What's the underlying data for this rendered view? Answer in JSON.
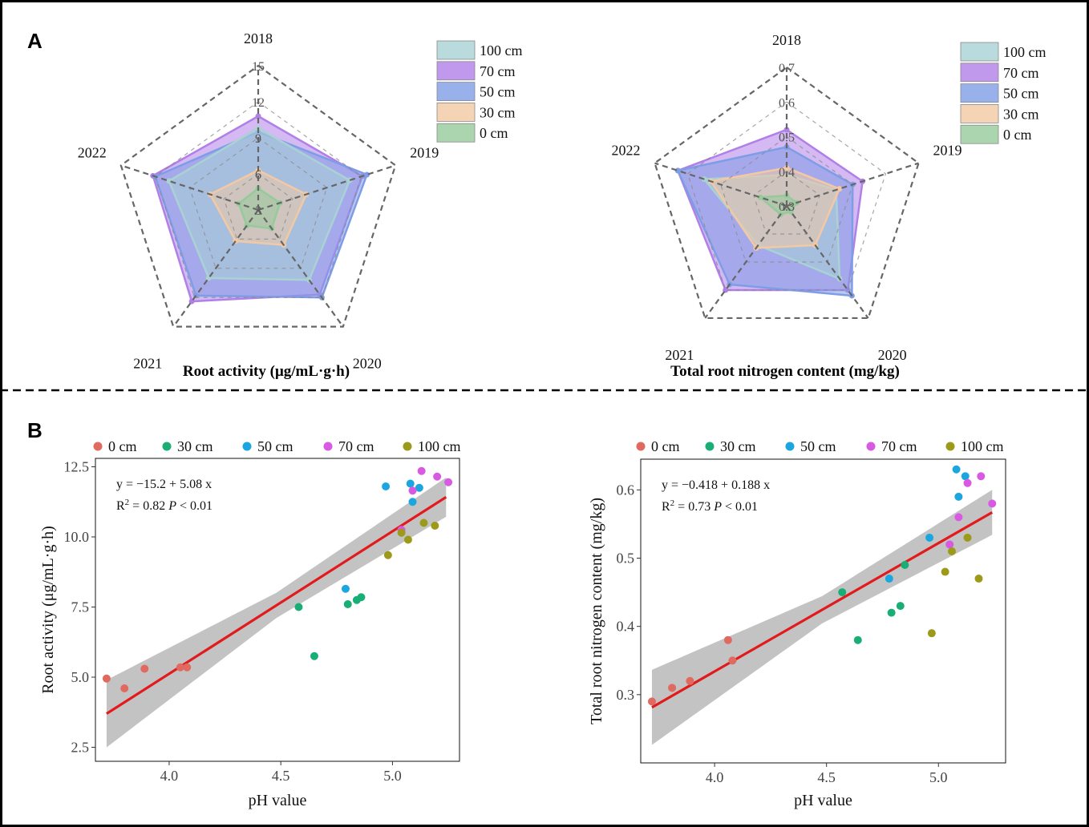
{
  "panels": {
    "a": "A",
    "b": "B"
  },
  "chart_data": [
    {
      "type": "radar",
      "title": "Root activity (μg/mL·g·h)",
      "axes": [
        "2018",
        "2019",
        "2020",
        "2021",
        "2022"
      ],
      "rlim": [
        3,
        15
      ],
      "rticks": [
        "3",
        "6",
        "9",
        "12",
        "15"
      ],
      "legend": [
        "100 cm",
        "70 cm",
        "50 cm",
        "30 cm",
        "0 cm"
      ],
      "series": [
        {
          "name": "70 cm",
          "color": "#b07fe8",
          "values": [
            10.8,
            12.1,
            11.7,
            12.4,
            12.2
          ]
        },
        {
          "name": "50 cm",
          "color": "#7e9de6",
          "values": [
            9.5,
            12.5,
            12.0,
            11.8,
            12.0
          ]
        },
        {
          "name": "100 cm",
          "color": "#a9d2d4",
          "values": [
            9.8,
            11.0,
            10.2,
            10.0,
            10.8
          ]
        },
        {
          "name": "30 cm",
          "color": "#f2c9a4",
          "values": [
            6.3,
            7.2,
            6.6,
            6.2,
            7.2
          ]
        },
        {
          "name": "0 cm",
          "color": "#95ca9b",
          "values": [
            4.8,
            4.9,
            4.9,
            4.6,
            4.7
          ]
        }
      ]
    },
    {
      "type": "radar",
      "title": "Total root nitrogen content (mg/kg)",
      "axes": [
        "2018",
        "2019",
        "2020",
        "2021",
        "2022"
      ],
      "rlim": [
        0.3,
        0.7
      ],
      "rticks": [
        "0.3",
        "0.4",
        "0.5",
        "0.6",
        "0.7"
      ],
      "legend": [
        "100 cm",
        "70 cm",
        "50 cm",
        "30 cm",
        "0 cm"
      ],
      "series": [
        {
          "name": "70 cm",
          "color": "#b07fe8",
          "values": [
            0.52,
            0.53,
            0.6,
            0.6,
            0.63
          ]
        },
        {
          "name": "50 cm",
          "color": "#7e9de6",
          "values": [
            0.47,
            0.5,
            0.62,
            0.58,
            0.63
          ]
        },
        {
          "name": "100 cm",
          "color": "#a9d2d4",
          "values": [
            0.39,
            0.45,
            0.56,
            0.44,
            0.55
          ]
        },
        {
          "name": "30 cm",
          "color": "#f2c9a4",
          "values": [
            0.41,
            0.46,
            0.44,
            0.45,
            0.53
          ]
        },
        {
          "name": "0 cm",
          "color": "#95ca9b",
          "values": [
            0.33,
            0.33,
            0.32,
            0.33,
            0.38
          ]
        }
      ]
    },
    {
      "type": "scatter",
      "xlabel": "pH value",
      "ylabel": "Root activity (μg/mL·g·h)",
      "xlim": [
        3.67,
        5.3
      ],
      "ylim": [
        2.0,
        12.8
      ],
      "xticks": [
        4.0,
        4.5,
        5.0
      ],
      "yticks": [
        2.5,
        5.0,
        7.5,
        10.0,
        12.5
      ],
      "xtick_labels": [
        "4.0",
        "4.5",
        "5.0"
      ],
      "ytick_labels": [
        "2.5",
        "5.0",
        "7.5",
        "10.0",
        "12.5"
      ],
      "fit": {
        "intercept": -15.2,
        "slope": 5.08,
        "x_range": [
          3.72,
          5.24
        ],
        "band_half_width": [
          1.2,
          0.45,
          0.7
        ]
      },
      "equation": "y = −15.2 + 5.08 x",
      "r2_label": "R",
      "r2_sup": "2",
      "r2_value": "= 0.82",
      "p_label": "P",
      "p_value": "< 0.01",
      "legend": [
        "0 cm",
        "30 cm",
        "50 cm",
        "70 cm",
        "100 cm"
      ],
      "series": [
        {
          "name": "0 cm",
          "color": "#e06a5f",
          "points": [
            [
              3.72,
              4.95
            ],
            [
              3.8,
              4.6
            ],
            [
              3.89,
              5.3
            ],
            [
              4.05,
              5.35
            ],
            [
              4.08,
              5.35
            ]
          ]
        },
        {
          "name": "30 cm",
          "color": "#1aae77",
          "points": [
            [
              4.58,
              7.5
            ],
            [
              4.65,
              5.75
            ],
            [
              4.8,
              7.6
            ],
            [
              4.84,
              7.75
            ],
            [
              4.86,
              7.85
            ]
          ]
        },
        {
          "name": "50 cm",
          "color": "#1ba6e0",
          "points": [
            [
              4.79,
              8.15
            ],
            [
              4.97,
              11.8
            ],
            [
              5.08,
              11.9
            ],
            [
              5.09,
              11.25
            ],
            [
              5.12,
              11.75
            ]
          ]
        },
        {
          "name": "70 cm",
          "color": "#d85ae3",
          "points": [
            [
              5.04,
              10.25
            ],
            [
              5.09,
              11.65
            ],
            [
              5.13,
              12.35
            ],
            [
              5.2,
              12.15
            ],
            [
              5.25,
              11.95
            ]
          ]
        },
        {
          "name": "100 cm",
          "color": "#9c9a18",
          "points": [
            [
              4.98,
              9.35
            ],
            [
              5.04,
              10.15
            ],
            [
              5.07,
              9.9
            ],
            [
              5.14,
              10.5
            ],
            [
              5.19,
              10.4
            ]
          ]
        }
      ]
    },
    {
      "type": "scatter",
      "xlabel": "pH value",
      "ylabel": "Total root nitrogen content (mg/kg)",
      "xlim": [
        3.67,
        5.3
      ],
      "ylim": [
        0.2,
        0.645
      ],
      "xticks": [
        4.0,
        4.5,
        5.0
      ],
      "yticks": [
        0.3,
        0.4,
        0.5,
        0.6
      ],
      "xtick_labels": [
        "4.0",
        "4.5",
        "5.0"
      ],
      "ytick_labels": [
        "0.3",
        "0.4",
        "0.5",
        "0.6"
      ],
      "fit": {
        "intercept": -0.418,
        "slope": 0.188,
        "x_range": [
          3.72,
          5.24
        ],
        "band_half_width": [
          0.055,
          0.02,
          0.033
        ]
      },
      "equation": "y = −0.418 + 0.188 x",
      "r2_label": "R",
      "r2_sup": "2",
      "r2_value": "= 0.73",
      "p_label": "P",
      "p_value": "< 0.01",
      "legend": [
        "0 cm",
        "30 cm",
        "50 cm",
        "70 cm",
        "100 cm"
      ],
      "series": [
        {
          "name": "0 cm",
          "color": "#e06a5f",
          "points": [
            [
              3.72,
              0.29
            ],
            [
              3.81,
              0.31
            ],
            [
              3.89,
              0.32
            ],
            [
              4.06,
              0.38
            ],
            [
              4.08,
              0.35
            ]
          ]
        },
        {
          "name": "30 cm",
          "color": "#1aae77",
          "points": [
            [
              4.57,
              0.45
            ],
            [
              4.64,
              0.38
            ],
            [
              4.79,
              0.42
            ],
            [
              4.83,
              0.43
            ],
            [
              4.85,
              0.49
            ]
          ]
        },
        {
          "name": "50 cm",
          "color": "#1ba6e0",
          "points": [
            [
              4.78,
              0.47
            ],
            [
              4.96,
              0.53
            ],
            [
              5.08,
              0.63
            ],
            [
              5.09,
              0.59
            ],
            [
              5.12,
              0.62
            ]
          ]
        },
        {
          "name": "70 cm",
          "color": "#d85ae3",
          "points": [
            [
              5.05,
              0.52
            ],
            [
              5.09,
              0.56
            ],
            [
              5.13,
              0.61
            ],
            [
              5.19,
              0.62
            ],
            [
              5.24,
              0.58
            ]
          ]
        },
        {
          "name": "100 cm",
          "color": "#9c9a18",
          "points": [
            [
              4.97,
              0.39
            ],
            [
              5.03,
              0.48
            ],
            [
              5.06,
              0.51
            ],
            [
              5.13,
              0.53
            ],
            [
              5.18,
              0.47
            ]
          ]
        }
      ]
    }
  ]
}
